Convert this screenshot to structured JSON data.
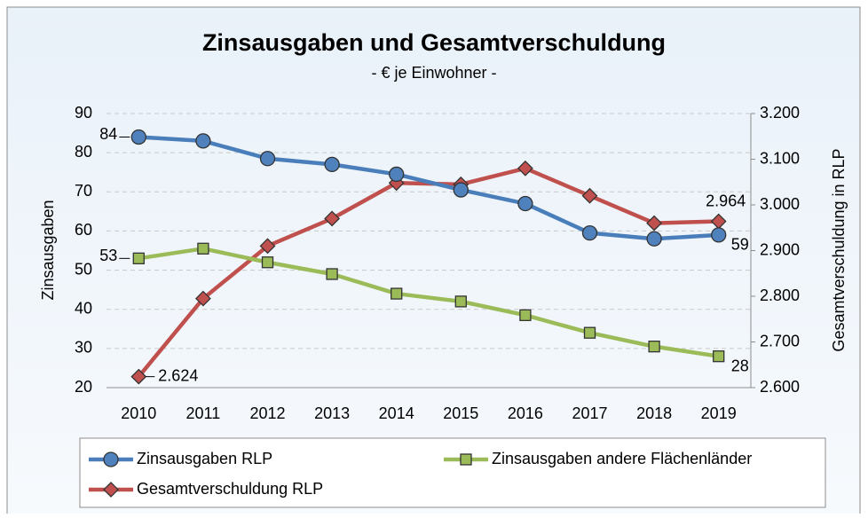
{
  "chart_data": {
    "type": "line",
    "title": "Zinsausgaben und Gesamtverschuldung",
    "subtitle": "- € je Einwohner -",
    "y_label": "Zinsausgaben",
    "y2_label": "Gesamtverschuldung in RLP",
    "categories": [
      "2010",
      "2011",
      "2012",
      "2013",
      "2014",
      "2015",
      "2016",
      "2017",
      "2018",
      "2019"
    ],
    "ylim": [
      20,
      90
    ],
    "yticks": [
      20,
      30,
      40,
      50,
      60,
      70,
      80,
      90
    ],
    "y2lim": [
      2600,
      3200
    ],
    "y2ticks": [
      {
        "value": 2600,
        "label": "2.600"
      },
      {
        "value": 2700,
        "label": "2.700"
      },
      {
        "value": 2800,
        "label": "2.800"
      },
      {
        "value": 2900,
        "label": "2.900"
      },
      {
        "value": 3000,
        "label": "3.000"
      },
      {
        "value": 3100,
        "label": "3.100"
      },
      {
        "value": 3200,
        "label": "3.200"
      }
    ],
    "grid": true,
    "series": [
      {
        "name": "Zinsausgaben RLP",
        "color": "#4a7ebb",
        "marker": "circle",
        "marker_color": "#4f81bd",
        "values": [
          84,
          83,
          78.5,
          77,
          74.5,
          70.5,
          67,
          59.5,
          58,
          59
        ],
        "value_labels": [
          "84",
          null,
          null,
          null,
          null,
          null,
          null,
          null,
          null,
          "59"
        ]
      },
      {
        "name": "Zinsausgaben andere Flächenländer",
        "color": "#9bbb59",
        "marker": "square",
        "marker_color": "#9bbb59",
        "values": [
          53,
          55.5,
          52,
          49,
          44,
          42,
          38.5,
          34,
          30.5,
          28
        ],
        "value_labels": [
          "53",
          null,
          null,
          null,
          null,
          null,
          null,
          null,
          null,
          "28"
        ]
      },
      {
        "name": "Gesamtverschuldung RLP",
        "color": "#c0504d",
        "marker": "diamond",
        "marker_color": "#c0504d",
        "axis": "y2",
        "values": [
          2624,
          2795,
          2910,
          2970,
          3048,
          3045,
          3080,
          3020,
          2960,
          2964
        ],
        "value_labels": [
          "2.624",
          null,
          null,
          null,
          null,
          null,
          null,
          null,
          null,
          "2.964"
        ]
      }
    ]
  }
}
